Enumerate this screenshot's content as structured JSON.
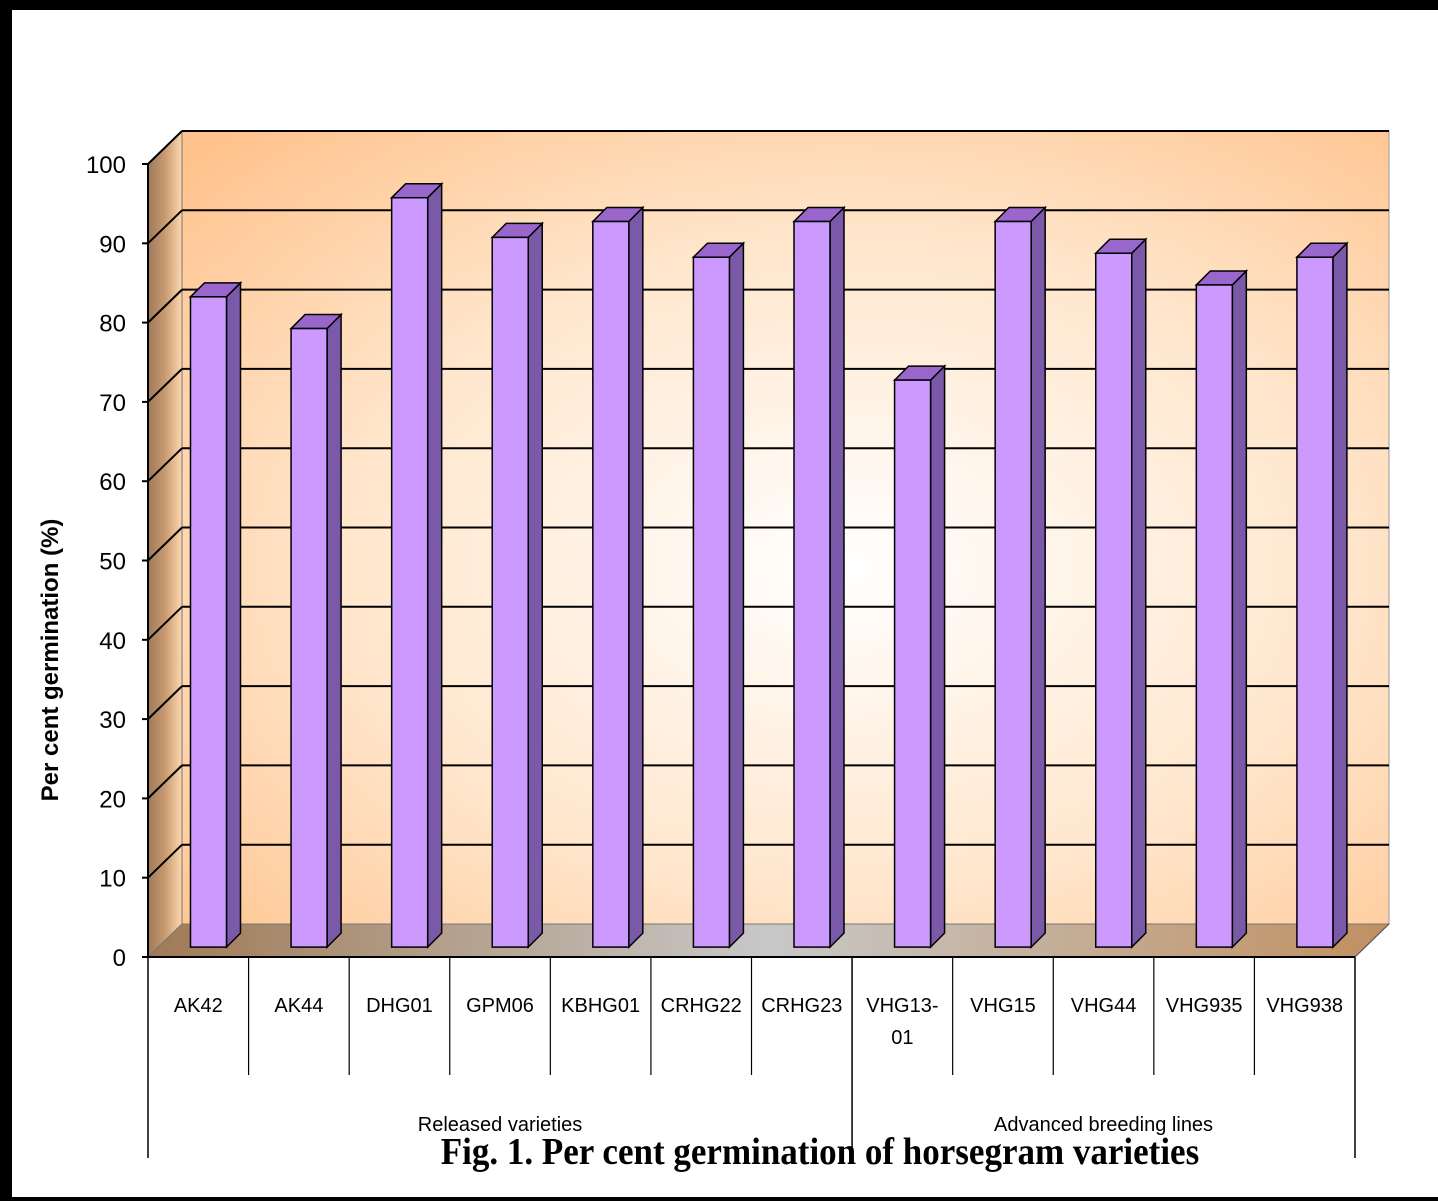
{
  "chart_data": {
    "type": "bar",
    "title": "",
    "ylabel": "Per cent germination (%)",
    "xlabel": "",
    "ylim": [
      0,
      100
    ],
    "yticks": [
      0,
      10,
      20,
      30,
      40,
      50,
      60,
      70,
      80,
      90,
      100
    ],
    "grid": true,
    "categories": [
      "AK42",
      "AK44",
      "DHG01",
      "GPM06",
      "KBHG01",
      "CRHG22",
      "CRHG23",
      "VHG13-01",
      "VHG15",
      "VHG44",
      "VHG935",
      "VHG938"
    ],
    "values": [
      82,
      78,
      94.5,
      89.5,
      91.5,
      87,
      91.5,
      71.5,
      91.5,
      87.5,
      83.5,
      87
    ],
    "groups": [
      {
        "label": "Released varieties",
        "categories": [
          "AK42",
          "AK44",
          "DHG01",
          "GPM06",
          "KBHG01",
          "CRHG22",
          "CRHG23"
        ]
      },
      {
        "label": "Advanced breeding lines",
        "categories": [
          "VHG13-01",
          "VHG15",
          "VHG44",
          "VHG935",
          "VHG938"
        ]
      }
    ],
    "colors": {
      "bar_front": "#cc99ff",
      "bar_side": "#7a5aa8",
      "bar_top": "#9966cc",
      "background": "#ffcc99",
      "floor": "#a08060"
    }
  },
  "caption": "Fig. 1. Per cent germination of horsegram varieties"
}
